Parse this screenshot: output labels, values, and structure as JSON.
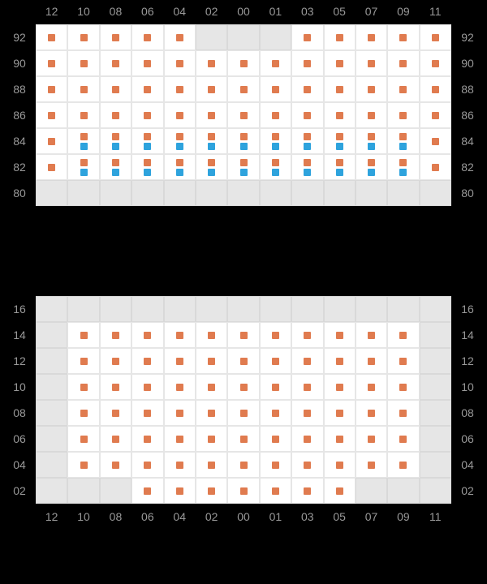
{
  "colors": {
    "orange": "#e07b4f",
    "blue": "#2ea3dd",
    "cell_bg": "#ffffff",
    "cell_border": "#e6e6e6",
    "grey_bg": "#e6e6e6",
    "label_color": "#999999",
    "background": "#000000"
  },
  "label_fontsize": 14,
  "columns": [
    "12",
    "10",
    "08",
    "06",
    "04",
    "02",
    "00",
    "01",
    "03",
    "05",
    "07",
    "09",
    "11"
  ],
  "top_block": {
    "rows": [
      "92",
      "90",
      "88",
      "86",
      "84",
      "82",
      "80"
    ],
    "cells": [
      [
        [
          "o"
        ],
        [
          "o"
        ],
        [
          "o"
        ],
        [
          "o"
        ],
        [
          "o"
        ],
        "grey",
        "grey",
        "grey",
        [
          "o"
        ],
        [
          "o"
        ],
        [
          "o"
        ],
        [
          "o"
        ],
        [
          "o"
        ]
      ],
      [
        [
          "o"
        ],
        [
          "o"
        ],
        [
          "o"
        ],
        [
          "o"
        ],
        [
          "o"
        ],
        [
          "o"
        ],
        [
          "o"
        ],
        [
          "o"
        ],
        [
          "o"
        ],
        [
          "o"
        ],
        [
          "o"
        ],
        [
          "o"
        ],
        [
          "o"
        ]
      ],
      [
        [
          "o"
        ],
        [
          "o"
        ],
        [
          "o"
        ],
        [
          "o"
        ],
        [
          "o"
        ],
        [
          "o"
        ],
        [
          "o"
        ],
        [
          "o"
        ],
        [
          "o"
        ],
        [
          "o"
        ],
        [
          "o"
        ],
        [
          "o"
        ],
        [
          "o"
        ]
      ],
      [
        [
          "o"
        ],
        [
          "o"
        ],
        [
          "o"
        ],
        [
          "o"
        ],
        [
          "o"
        ],
        [
          "o"
        ],
        [
          "o"
        ],
        [
          "o"
        ],
        [
          "o"
        ],
        [
          "o"
        ],
        [
          "o"
        ],
        [
          "o"
        ],
        [
          "o"
        ]
      ],
      [
        [
          "o"
        ],
        [
          "o",
          "b"
        ],
        [
          "o",
          "b"
        ],
        [
          "o",
          "b"
        ],
        [
          "o",
          "b"
        ],
        [
          "o",
          "b"
        ],
        [
          "o",
          "b"
        ],
        [
          "o",
          "b"
        ],
        [
          "o",
          "b"
        ],
        [
          "o",
          "b"
        ],
        [
          "o",
          "b"
        ],
        [
          "o",
          "b"
        ],
        [
          "o"
        ]
      ],
      [
        [
          "o"
        ],
        [
          "o",
          "b"
        ],
        [
          "o",
          "b"
        ],
        [
          "o",
          "b"
        ],
        [
          "o",
          "b"
        ],
        [
          "o",
          "b"
        ],
        [
          "o",
          "b"
        ],
        [
          "o",
          "b"
        ],
        [
          "o",
          "b"
        ],
        [
          "o",
          "b"
        ],
        [
          "o",
          "b"
        ],
        [
          "o",
          "b"
        ],
        [
          "o"
        ]
      ],
      [
        "grey",
        "grey",
        "grey",
        "grey",
        "grey",
        "grey",
        "grey",
        "grey",
        "grey",
        "grey",
        "grey",
        "grey",
        "grey"
      ]
    ]
  },
  "bottom_block": {
    "rows": [
      "16",
      "14",
      "12",
      "10",
      "08",
      "06",
      "04",
      "02"
    ],
    "cells": [
      [
        "grey",
        "grey",
        "grey",
        "grey",
        "grey",
        "grey",
        "grey",
        "grey",
        "grey",
        "grey",
        "grey",
        "grey",
        "grey"
      ],
      [
        "grey",
        [
          "o"
        ],
        [
          "o"
        ],
        [
          "o"
        ],
        [
          "o"
        ],
        [
          "o"
        ],
        [
          "o"
        ],
        [
          "o"
        ],
        [
          "o"
        ],
        [
          "o"
        ],
        [
          "o"
        ],
        [
          "o"
        ],
        "grey"
      ],
      [
        "grey",
        [
          "o"
        ],
        [
          "o"
        ],
        [
          "o"
        ],
        [
          "o"
        ],
        [
          "o"
        ],
        [
          "o"
        ],
        [
          "o"
        ],
        [
          "o"
        ],
        [
          "o"
        ],
        [
          "o"
        ],
        [
          "o"
        ],
        "grey"
      ],
      [
        "grey",
        [
          "o"
        ],
        [
          "o"
        ],
        [
          "o"
        ],
        [
          "o"
        ],
        [
          "o"
        ],
        [
          "o"
        ],
        [
          "o"
        ],
        [
          "o"
        ],
        [
          "o"
        ],
        [
          "o"
        ],
        [
          "o"
        ],
        "grey"
      ],
      [
        "grey",
        [
          "o"
        ],
        [
          "o"
        ],
        [
          "o"
        ],
        [
          "o"
        ],
        [
          "o"
        ],
        [
          "o"
        ],
        [
          "o"
        ],
        [
          "o"
        ],
        [
          "o"
        ],
        [
          "o"
        ],
        [
          "o"
        ],
        "grey"
      ],
      [
        "grey",
        [
          "o"
        ],
        [
          "o"
        ],
        [
          "o"
        ],
        [
          "o"
        ],
        [
          "o"
        ],
        [
          "o"
        ],
        [
          "o"
        ],
        [
          "o"
        ],
        [
          "o"
        ],
        [
          "o"
        ],
        [
          "o"
        ],
        "grey"
      ],
      [
        "grey",
        [
          "o"
        ],
        [
          "o"
        ],
        [
          "o"
        ],
        [
          "o"
        ],
        [
          "o"
        ],
        [
          "o"
        ],
        [
          "o"
        ],
        [
          "o"
        ],
        [
          "o"
        ],
        [
          "o"
        ],
        [
          "o"
        ],
        "grey"
      ],
      [
        "grey",
        "grey",
        "grey",
        [
          "o"
        ],
        [
          "o"
        ],
        [
          "o"
        ],
        [
          "o"
        ],
        [
          "o"
        ],
        [
          "o"
        ],
        [
          "o"
        ],
        "grey",
        "grey",
        "grey"
      ]
    ]
  }
}
